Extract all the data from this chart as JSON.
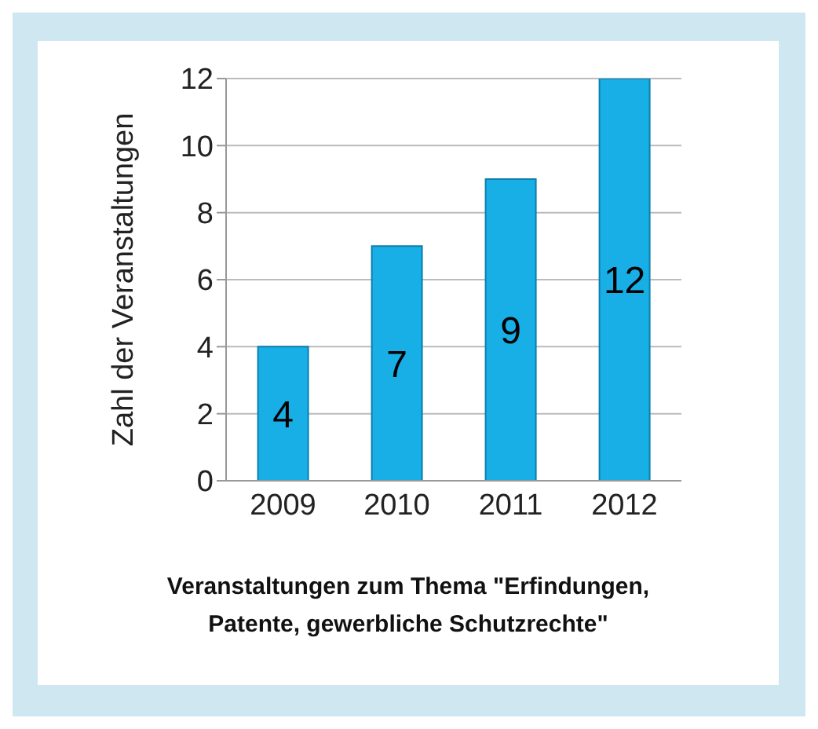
{
  "chart_data": {
    "type": "bar",
    "categories": [
      "2009",
      "2010",
      "2011",
      "2012"
    ],
    "values": [
      4,
      7,
      9,
      12
    ],
    "color": "#18aee6",
    "ylim": [
      0,
      12
    ],
    "yticks": [
      0,
      2,
      4,
      6,
      8,
      10,
      12
    ],
    "grid": "y",
    "data_labels": true,
    "ylabel": "Zahl der Veranstaltungen",
    "xlabel": "Veranstaltungen zum Thema \"Erfindungen, Patente, gewerbliche Schutzrechte\""
  }
}
